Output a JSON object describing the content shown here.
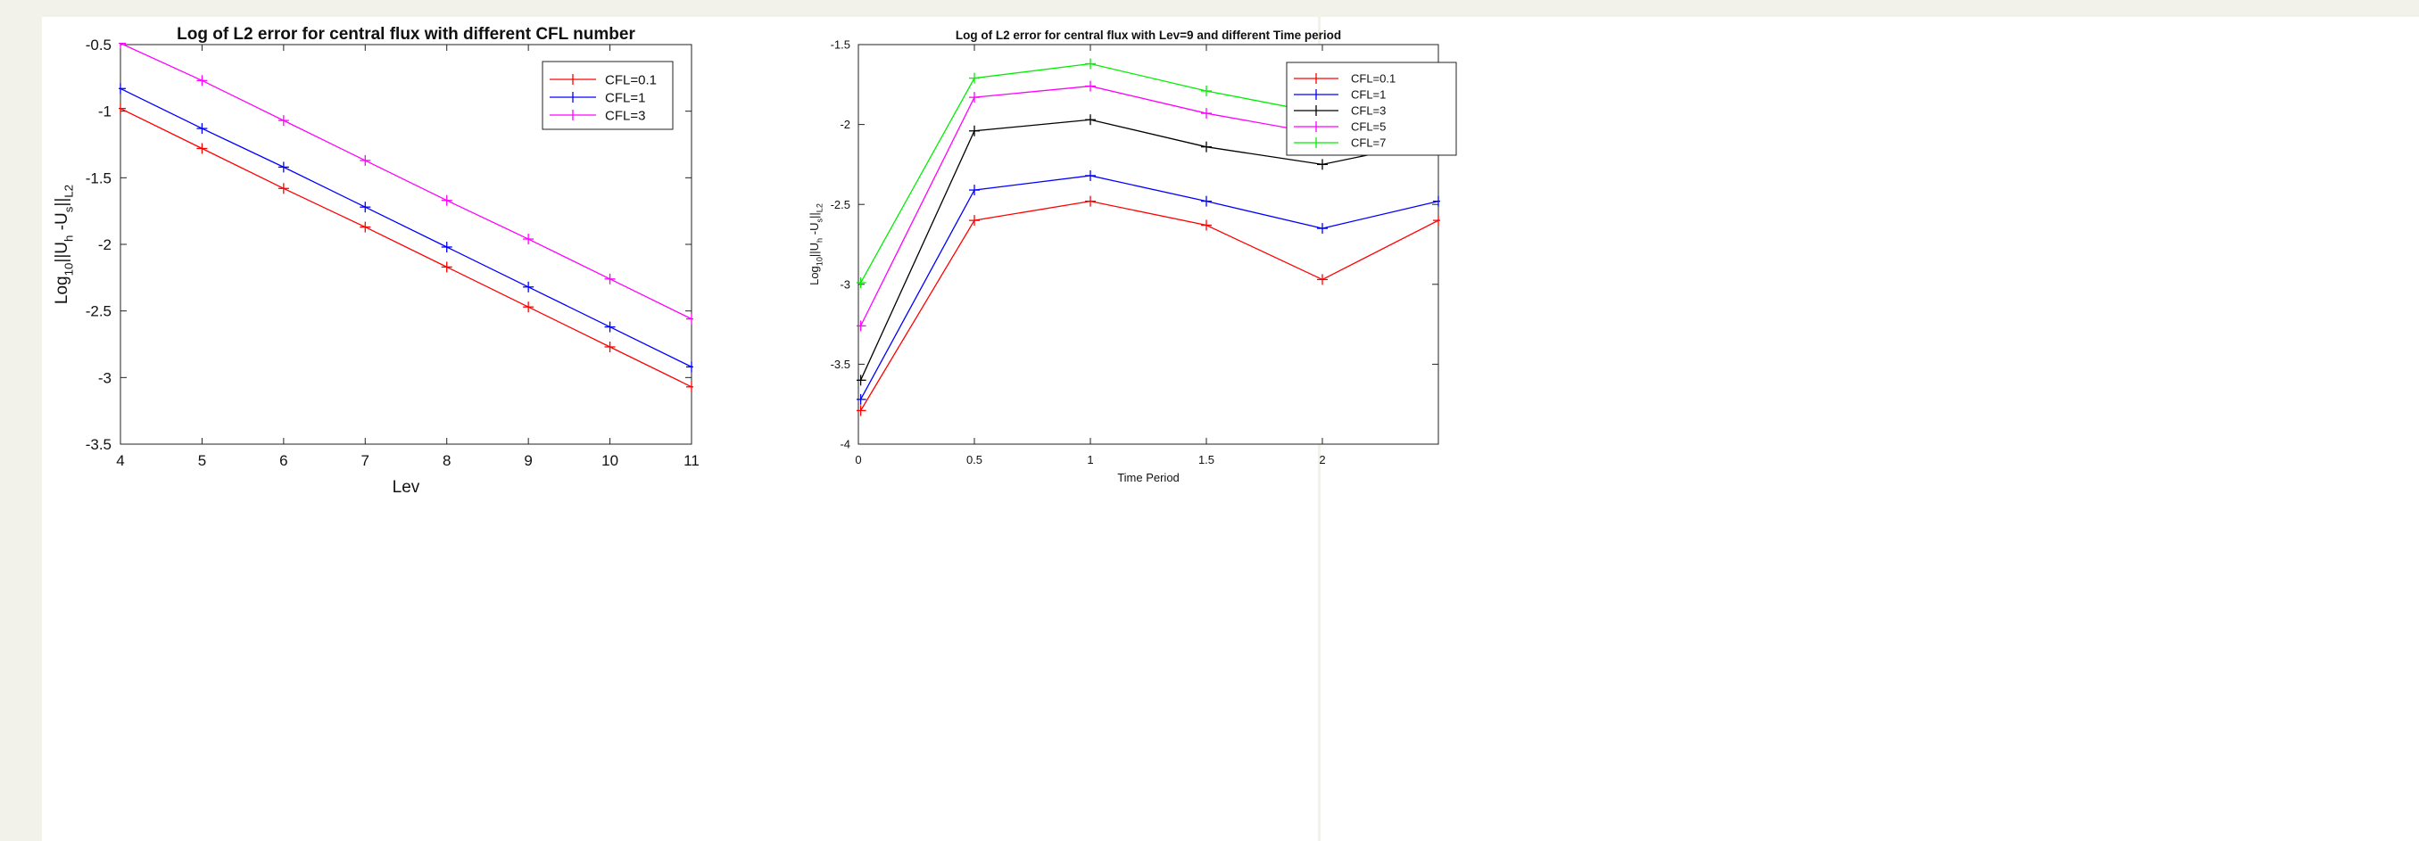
{
  "chart_data": [
    {
      "type": "line",
      "title": "Log of L2 error for central flux with different CFL number",
      "xlabel": "Lev",
      "ylabel": {
        "base": "Log",
        "base_sub": "10",
        "body": "||U",
        "sub1": "h",
        "mid": " -U",
        "sub2": "s",
        "end": "||",
        "sub3": "L2"
      },
      "xlim": [
        4,
        11
      ],
      "ylim": [
        -3.5,
        -0.5
      ],
      "x_ticks": [
        4,
        5,
        6,
        7,
        8,
        9,
        10,
        11
      ],
      "y_ticks": [
        -0.5,
        -1,
        -1.5,
        -2,
        -2.5,
        -3,
        -3.5
      ],
      "legend_position": "top-right",
      "x": [
        4,
        5,
        6,
        7,
        8,
        9,
        10,
        11
      ],
      "series": [
        {
          "name": "CFL=0.1",
          "color": "#ff0000",
          "values": [
            -0.98,
            -1.28,
            -1.58,
            -1.87,
            -2.17,
            -2.47,
            -2.77,
            -3.07
          ]
        },
        {
          "name": "CFL=1",
          "color": "#0000ff",
          "values": [
            -0.83,
            -1.13,
            -1.42,
            -1.72,
            -2.02,
            -2.32,
            -2.62,
            -2.92
          ]
        },
        {
          "name": "CFL=3",
          "color": "#ff00ff",
          "values": [
            -0.49,
            -0.77,
            -1.07,
            -1.37,
            -1.67,
            -1.96,
            -2.26,
            -2.56
          ]
        }
      ]
    },
    {
      "type": "line",
      "title": "Log of L2 error for central flux with Lev=9 and different Time period",
      "xlabel": "Time Period",
      "ylabel": {
        "base": "Log",
        "base_sub": "10",
        "body": "||U",
        "sub1": "h",
        "mid": " -U",
        "sub2": "s",
        "end": "||",
        "sub3": "L2"
      },
      "xlim": [
        0,
        2.5
      ],
      "ylim": [
        -4,
        -1.5
      ],
      "x_ticks": [
        0,
        0.5,
        1,
        1.5,
        2
      ],
      "y_ticks": [
        -1.5,
        -2,
        -2.5,
        -3,
        -3.5,
        -4
      ],
      "legend_position": "top-right",
      "x": [
        0.01,
        0.5,
        1,
        1.5,
        2,
        2.5
      ],
      "series": [
        {
          "name": "CFL=0.1",
          "color": "#ff0000",
          "values": [
            -3.79,
            -2.6,
            -2.48,
            -2.63,
            -2.97,
            -2.6
          ]
        },
        {
          "name": "CFL=1",
          "color": "#0000ff",
          "values": [
            -3.72,
            -2.41,
            -2.32,
            -2.48,
            -2.65,
            -2.48
          ]
        },
        {
          "name": "CFL=3",
          "color": "#000000",
          "values": [
            -3.6,
            -2.04,
            -1.97,
            -2.14,
            -2.25,
            -2.1
          ]
        },
        {
          "name": "CFL=5",
          "color": "#ff00ff",
          "values": [
            -3.26,
            -1.83,
            -1.76,
            -1.93,
            -2.06,
            -1.95
          ]
        },
        {
          "name": "CFL=7",
          "color": "#00ee00",
          "values": [
            -2.99,
            -1.71,
            -1.62,
            -1.79,
            -1.93,
            -1.85
          ]
        }
      ]
    }
  ]
}
